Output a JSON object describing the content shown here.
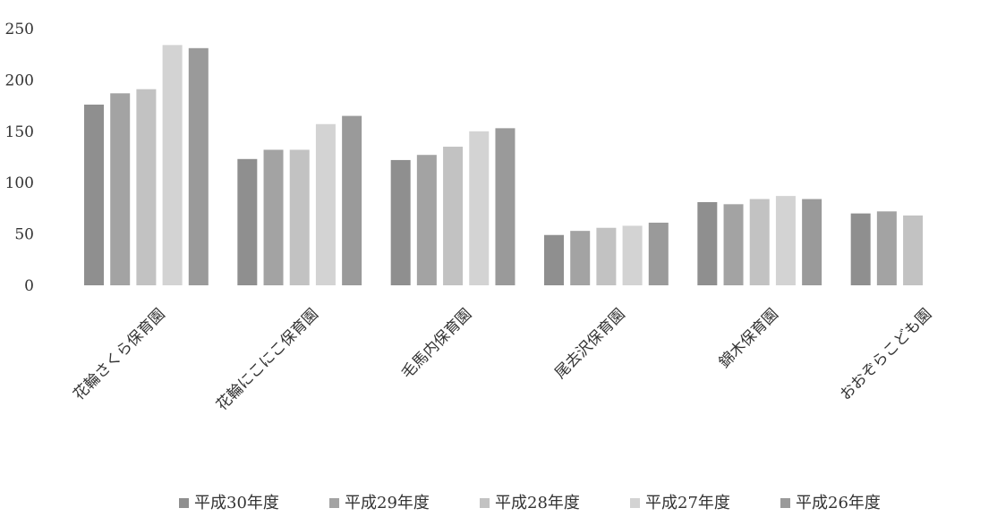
{
  "chart_data": {
    "type": "bar",
    "title": "",
    "xlabel": "",
    "ylabel": "",
    "ylim": [
      0,
      250
    ],
    "yticks": [
      0,
      50,
      100,
      150,
      200,
      250
    ],
    "grid": false,
    "legend_position": "bottom",
    "categories": [
      "花輪さくら保育園",
      "花輪にこにこ保育園",
      "毛馬内保育園",
      "尾去沢保育園",
      "錦木保育園",
      "おおぞらこども園"
    ],
    "series": [
      {
        "name": "平成30年度",
        "color": "#8f8f8f",
        "values": [
          176,
          123,
          122,
          49,
          81,
          70
        ]
      },
      {
        "name": "平成29年度",
        "color": "#a3a3a3",
        "values": [
          187,
          132,
          127,
          53,
          79,
          72
        ]
      },
      {
        "name": "平成28年度",
        "color": "#c2c2c2",
        "values": [
          191,
          132,
          135,
          56,
          84,
          68
        ]
      },
      {
        "name": "平成27年度",
        "color": "#d3d3d3",
        "values": [
          234,
          157,
          150,
          58,
          87,
          null
        ]
      },
      {
        "name": "平成26年度",
        "color": "#9a9a9a",
        "values": [
          231,
          165,
          153,
          61,
          84,
          null
        ]
      }
    ]
  }
}
